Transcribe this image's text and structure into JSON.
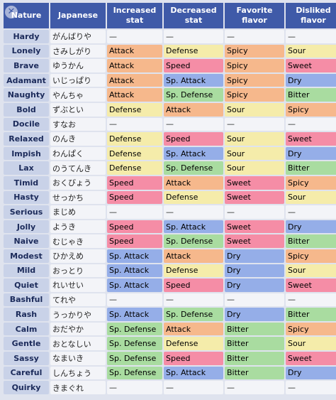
{
  "headers": [
    "Nature",
    "Japanese",
    "Increased stat",
    "Decreased stat",
    "Favorite flavor",
    "Disliked flavor"
  ],
  "header_icon": "close-icon",
  "colors": {
    "Attack": "#f6b88c",
    "Defense": "#f5ecaa",
    "Speed": "#f58da6",
    "Sp. Attack": "#95aee8",
    "Sp. Defense": "#a9dca0",
    "Spicy": "#f6b88c",
    "Sour": "#f5ecaa",
    "Sweet": "#f58da6",
    "Dry": "#95aee8",
    "Bitter": "#a9dca0",
    "none": "#f3f4f8"
  },
  "rows": [
    [
      "Hardy",
      "がんばりや",
      "—",
      "—",
      "—",
      "—"
    ],
    [
      "Lonely",
      "さみしがり",
      "Attack",
      "Defense",
      "Spicy",
      "Sour"
    ],
    [
      "Brave",
      "ゆうかん",
      "Attack",
      "Speed",
      "Spicy",
      "Sweet"
    ],
    [
      "Adamant",
      "いじっぱり",
      "Attack",
      "Sp. Attack",
      "Spicy",
      "Dry"
    ],
    [
      "Naughty",
      "やんちゃ",
      "Attack",
      "Sp. Defense",
      "Spicy",
      "Bitter"
    ],
    [
      "Bold",
      "ずぶとい",
      "Defense",
      "Attack",
      "Sour",
      "Spicy"
    ],
    [
      "Docile",
      "すなお",
      "—",
      "—",
      "—",
      "—"
    ],
    [
      "Relaxed",
      "のんき",
      "Defense",
      "Speed",
      "Sour",
      "Sweet"
    ],
    [
      "Impish",
      "わんぱく",
      "Defense",
      "Sp. Attack",
      "Sour",
      "Dry"
    ],
    [
      "Lax",
      "のうてんき",
      "Defense",
      "Sp. Defense",
      "Sour",
      "Bitter"
    ],
    [
      "Timid",
      "おくびょう",
      "Speed",
      "Attack",
      "Sweet",
      "Spicy"
    ],
    [
      "Hasty",
      "せっかち",
      "Speed",
      "Defense",
      "Sweet",
      "Sour"
    ],
    [
      "Serious",
      "まじめ",
      "—",
      "—",
      "—",
      "—"
    ],
    [
      "Jolly",
      "ようき",
      "Speed",
      "Sp. Attack",
      "Sweet",
      "Dry"
    ],
    [
      "Naive",
      "むじゃき",
      "Speed",
      "Sp. Defense",
      "Sweet",
      "Bitter"
    ],
    [
      "Modest",
      "ひかえめ",
      "Sp. Attack",
      "Attack",
      "Dry",
      "Spicy"
    ],
    [
      "Mild",
      "おっとり",
      "Sp. Attack",
      "Defense",
      "Dry",
      "Sour"
    ],
    [
      "Quiet",
      "れいせい",
      "Sp. Attack",
      "Speed",
      "Dry",
      "Sweet"
    ],
    [
      "Bashful",
      "てれや",
      "—",
      "—",
      "—",
      "—"
    ],
    [
      "Rash",
      "うっかりや",
      "Sp. Attack",
      "Sp. Defense",
      "Dry",
      "Bitter"
    ],
    [
      "Calm",
      "おだやか",
      "Sp. Defense",
      "Attack",
      "Bitter",
      "Spicy"
    ],
    [
      "Gentle",
      "おとなしい",
      "Sp. Defense",
      "Defense",
      "Bitter",
      "Sour"
    ],
    [
      "Sassy",
      "なまいき",
      "Sp. Defense",
      "Speed",
      "Bitter",
      "Sweet"
    ],
    [
      "Careful",
      "しんちょう",
      "Sp. Defense",
      "Sp. Attack",
      "Bitter",
      "Dry"
    ],
    [
      "Quirky",
      "きまぐれ",
      "—",
      "—",
      "—",
      "—"
    ]
  ]
}
